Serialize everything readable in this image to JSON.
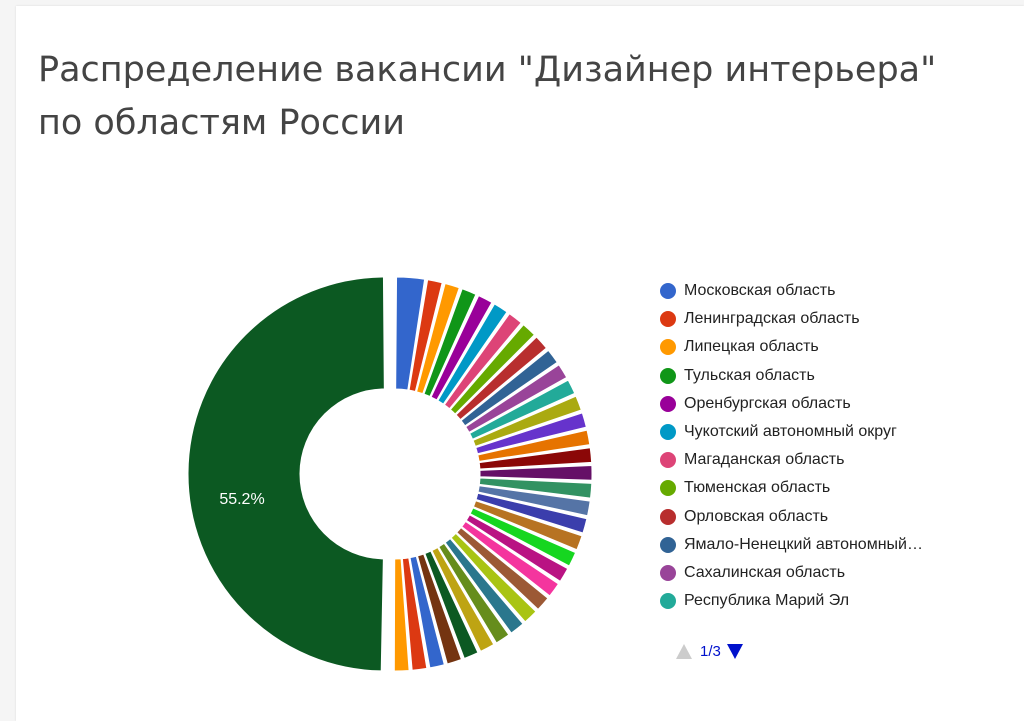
{
  "chart_data": {
    "type": "pie",
    "title": "Распределение вакансии \"Дизайнер интерьера\" по областям России",
    "data_labels": [
      "55.2%"
    ],
    "legend_position": "right",
    "legend_page": "1/3",
    "categories": [
      "Московская область",
      "Ленинградская область",
      "Липецкая область",
      "Тульская область",
      "Оренбургская область",
      "Чукотский автономный округ",
      "Магаданская область",
      "Тюменская область",
      "Орловская область",
      "Ямало-Ненецкий автономный…",
      "Сахалинская область",
      "Республика Марий Эл",
      "",
      "",
      "",
      "",
      "",
      "",
      "",
      "",
      "",
      "",
      "",
      "",
      "",
      "",
      "",
      "",
      "",
      "",
      "",
      "",
      "",
      "",
      ""
    ],
    "values": [
      2.8,
      1.6,
      1.6,
      1.6,
      1.6,
      1.6,
      1.6,
      1.6,
      1.6,
      1.6,
      1.6,
      1.6,
      1.6,
      1.6,
      1.6,
      1.6,
      1.6,
      1.6,
      1.6,
      1.6,
      1.6,
      1.6,
      1.6,
      1.6,
      1.6,
      1.6,
      1.6,
      1.6,
      1.6,
      1.6,
      1.6,
      1.6,
      1.6,
      1.6,
      55.2
    ],
    "colors": [
      "#3366cc",
      "#dc3912",
      "#ff9900",
      "#109618",
      "#990099",
      "#0099c6",
      "#dd4477",
      "#66aa00",
      "#b82e2e",
      "#316395",
      "#994499",
      "#22aa99",
      "#aaaa11",
      "#6633cc",
      "#e67300",
      "#8b0707",
      "#651067",
      "#329262",
      "#5574a6",
      "#3b3eac",
      "#b77322",
      "#16d620",
      "#b91383",
      "#f4359e",
      "#9c5935",
      "#a9c413",
      "#2a778d",
      "#668d1c",
      "#bea413",
      "#0c5922",
      "#743411",
      "#3366cc",
      "#dc3912",
      "#ff9900",
      "#0c5922"
    ]
  },
  "legend": {
    "items": [
      {
        "label": "Московская область",
        "color": "#3366cc"
      },
      {
        "label": "Ленинградская область",
        "color": "#dc3912"
      },
      {
        "label": "Липецкая область",
        "color": "#ff9900"
      },
      {
        "label": "Тульская область",
        "color": "#109618"
      },
      {
        "label": "Оренбургская область",
        "color": "#990099"
      },
      {
        "label": "Чукотский автономный округ",
        "color": "#0099c6"
      },
      {
        "label": "Магаданская область",
        "color": "#dd4477"
      },
      {
        "label": "Тюменская область",
        "color": "#66aa00"
      },
      {
        "label": "Орловская область",
        "color": "#b82e2e"
      },
      {
        "label": "Ямало-Ненецкий автономный…",
        "color": "#316395"
      },
      {
        "label": "Сахалинская область",
        "color": "#994499"
      },
      {
        "label": "Республика Марий Эл",
        "color": "#22aa99"
      }
    ],
    "page": "1/3"
  }
}
